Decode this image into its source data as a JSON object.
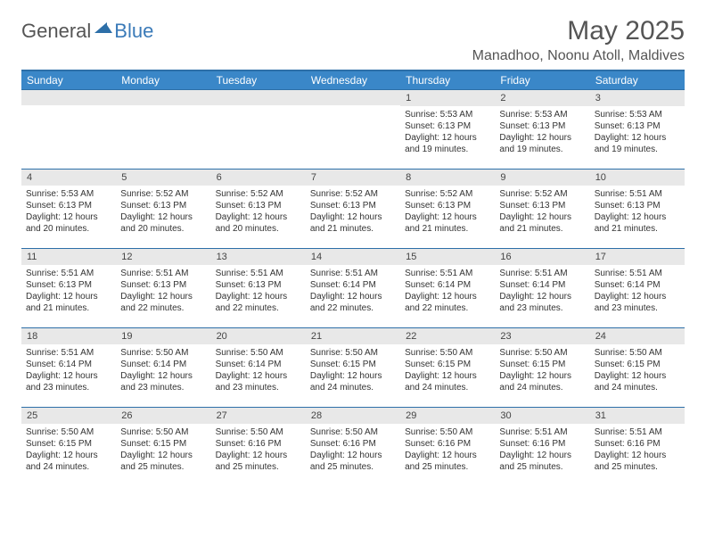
{
  "logo": {
    "text1": "General",
    "text2": "Blue"
  },
  "title": "May 2025",
  "location": "Manadhoo, Noonu Atoll, Maldives",
  "colors": {
    "header_bar": "#3a87c8",
    "border": "#2d6fa8",
    "day_number_bg": "#e8e8e8",
    "text": "#333333",
    "logo_blue": "#3a7ab8",
    "logo_gray": "#555555"
  },
  "weekdays": [
    "Sunday",
    "Monday",
    "Tuesday",
    "Wednesday",
    "Thursday",
    "Friday",
    "Saturday"
  ],
  "weeks": [
    [
      null,
      null,
      null,
      null,
      {
        "n": "1",
        "sr": "5:53 AM",
        "ss": "6:13 PM",
        "dl": "12 hours and 19 minutes."
      },
      {
        "n": "2",
        "sr": "5:53 AM",
        "ss": "6:13 PM",
        "dl": "12 hours and 19 minutes."
      },
      {
        "n": "3",
        "sr": "5:53 AM",
        "ss": "6:13 PM",
        "dl": "12 hours and 19 minutes."
      }
    ],
    [
      {
        "n": "4",
        "sr": "5:53 AM",
        "ss": "6:13 PM",
        "dl": "12 hours and 20 minutes."
      },
      {
        "n": "5",
        "sr": "5:52 AM",
        "ss": "6:13 PM",
        "dl": "12 hours and 20 minutes."
      },
      {
        "n": "6",
        "sr": "5:52 AM",
        "ss": "6:13 PM",
        "dl": "12 hours and 20 minutes."
      },
      {
        "n": "7",
        "sr": "5:52 AM",
        "ss": "6:13 PM",
        "dl": "12 hours and 21 minutes."
      },
      {
        "n": "8",
        "sr": "5:52 AM",
        "ss": "6:13 PM",
        "dl": "12 hours and 21 minutes."
      },
      {
        "n": "9",
        "sr": "5:52 AM",
        "ss": "6:13 PM",
        "dl": "12 hours and 21 minutes."
      },
      {
        "n": "10",
        "sr": "5:51 AM",
        "ss": "6:13 PM",
        "dl": "12 hours and 21 minutes."
      }
    ],
    [
      {
        "n": "11",
        "sr": "5:51 AM",
        "ss": "6:13 PM",
        "dl": "12 hours and 21 minutes."
      },
      {
        "n": "12",
        "sr": "5:51 AM",
        "ss": "6:13 PM",
        "dl": "12 hours and 22 minutes."
      },
      {
        "n": "13",
        "sr": "5:51 AM",
        "ss": "6:13 PM",
        "dl": "12 hours and 22 minutes."
      },
      {
        "n": "14",
        "sr": "5:51 AM",
        "ss": "6:14 PM",
        "dl": "12 hours and 22 minutes."
      },
      {
        "n": "15",
        "sr": "5:51 AM",
        "ss": "6:14 PM",
        "dl": "12 hours and 22 minutes."
      },
      {
        "n": "16",
        "sr": "5:51 AM",
        "ss": "6:14 PM",
        "dl": "12 hours and 23 minutes."
      },
      {
        "n": "17",
        "sr": "5:51 AM",
        "ss": "6:14 PM",
        "dl": "12 hours and 23 minutes."
      }
    ],
    [
      {
        "n": "18",
        "sr": "5:51 AM",
        "ss": "6:14 PM",
        "dl": "12 hours and 23 minutes."
      },
      {
        "n": "19",
        "sr": "5:50 AM",
        "ss": "6:14 PM",
        "dl": "12 hours and 23 minutes."
      },
      {
        "n": "20",
        "sr": "5:50 AM",
        "ss": "6:14 PM",
        "dl": "12 hours and 23 minutes."
      },
      {
        "n": "21",
        "sr": "5:50 AM",
        "ss": "6:15 PM",
        "dl": "12 hours and 24 minutes."
      },
      {
        "n": "22",
        "sr": "5:50 AM",
        "ss": "6:15 PM",
        "dl": "12 hours and 24 minutes."
      },
      {
        "n": "23",
        "sr": "5:50 AM",
        "ss": "6:15 PM",
        "dl": "12 hours and 24 minutes."
      },
      {
        "n": "24",
        "sr": "5:50 AM",
        "ss": "6:15 PM",
        "dl": "12 hours and 24 minutes."
      }
    ],
    [
      {
        "n": "25",
        "sr": "5:50 AM",
        "ss": "6:15 PM",
        "dl": "12 hours and 24 minutes."
      },
      {
        "n": "26",
        "sr": "5:50 AM",
        "ss": "6:15 PM",
        "dl": "12 hours and 25 minutes."
      },
      {
        "n": "27",
        "sr": "5:50 AM",
        "ss": "6:16 PM",
        "dl": "12 hours and 25 minutes."
      },
      {
        "n": "28",
        "sr": "5:50 AM",
        "ss": "6:16 PM",
        "dl": "12 hours and 25 minutes."
      },
      {
        "n": "29",
        "sr": "5:50 AM",
        "ss": "6:16 PM",
        "dl": "12 hours and 25 minutes."
      },
      {
        "n": "30",
        "sr": "5:51 AM",
        "ss": "6:16 PM",
        "dl": "12 hours and 25 minutes."
      },
      {
        "n": "31",
        "sr": "5:51 AM",
        "ss": "6:16 PM",
        "dl": "12 hours and 25 minutes."
      }
    ]
  ],
  "labels": {
    "sunrise": "Sunrise:",
    "sunset": "Sunset:",
    "daylight": "Daylight:"
  }
}
